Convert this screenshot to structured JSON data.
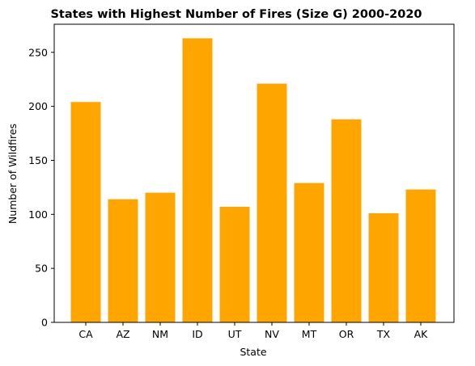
{
  "chart_data": {
    "type": "bar",
    "title": "States with Highest Number of Fires (Size G) 2000-2020",
    "xlabel": "State",
    "ylabel": "Number of Wildfires",
    "categories": [
      "CA",
      "AZ",
      "NM",
      "ID",
      "UT",
      "NV",
      "MT",
      "OR",
      "TX",
      "AK"
    ],
    "values": [
      204,
      114,
      120,
      263,
      107,
      221,
      129,
      188,
      101,
      123
    ],
    "yticks": [
      0,
      50,
      100,
      150,
      200,
      250
    ],
    "ylim": [
      0,
      276
    ],
    "bar_color": "#ffa500",
    "grid": false,
    "legend": "none"
  }
}
